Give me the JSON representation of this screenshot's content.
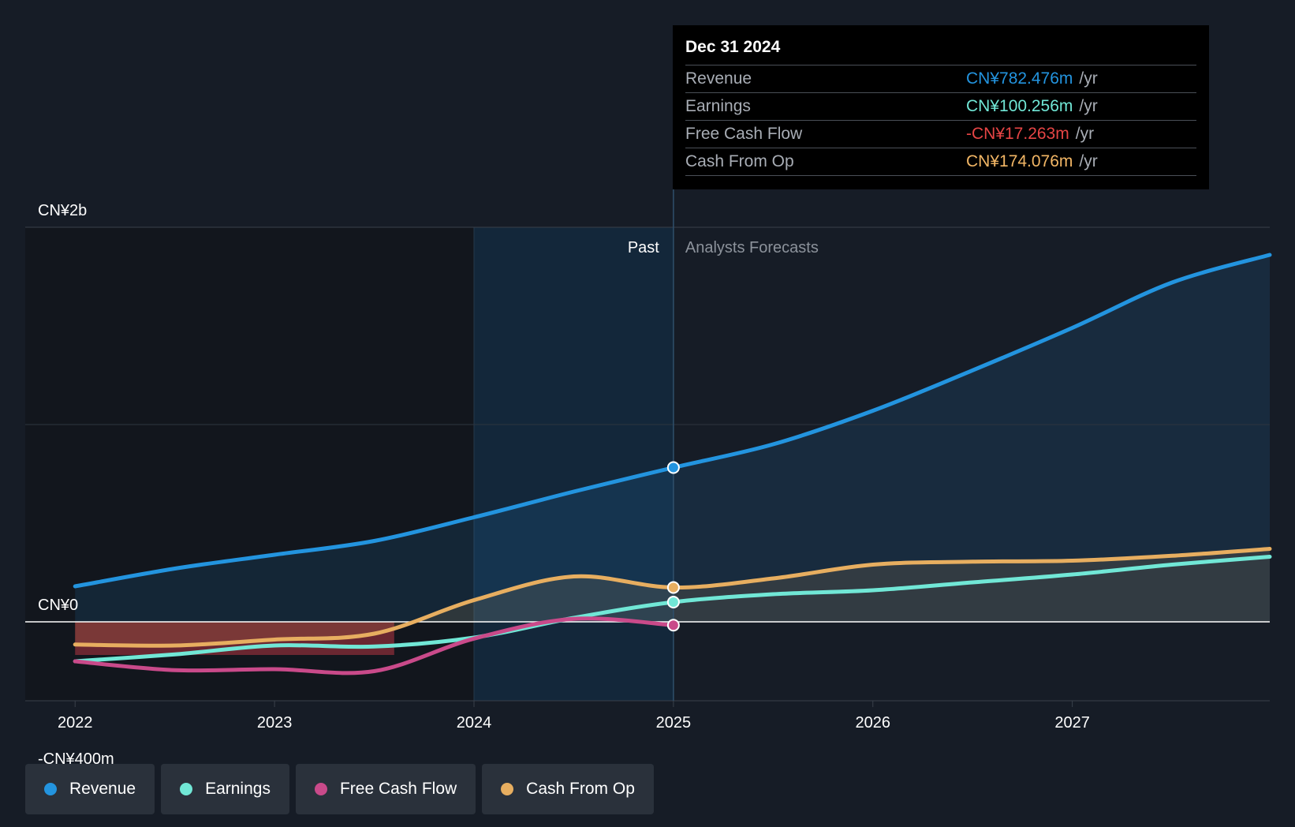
{
  "tooltip": {
    "date": "Dec 31 2024",
    "rows": [
      {
        "label": "Revenue",
        "value": "CN¥782.476m",
        "unit": "/yr",
        "color": "#2394df"
      },
      {
        "label": "Earnings",
        "value": "CN¥100.256m",
        "unit": "/yr",
        "color": "#71e7d6"
      },
      {
        "label": "Free Cash Flow",
        "value": "-CN¥17.263m",
        "unit": "/yr",
        "color": "#e64545"
      },
      {
        "label": "Cash From Op",
        "value": "CN¥174.076m",
        "unit": "/yr",
        "color": "#f2b665"
      }
    ]
  },
  "regions": {
    "past": "Past",
    "forecast": "Analysts Forecasts"
  },
  "legend": [
    {
      "label": "Revenue",
      "color": "#2394df"
    },
    {
      "label": "Earnings",
      "color": "#71e7d6"
    },
    {
      "label": "Free Cash Flow",
      "color": "#c94a8a"
    },
    {
      "label": "Cash From Op",
      "color": "#e7ae60"
    }
  ],
  "chart_data": {
    "type": "line",
    "title": "",
    "xlabel": "",
    "ylabel": "",
    "x_ticks": [
      "2022",
      "2023",
      "2024",
      "2025",
      "2026",
      "2027"
    ],
    "y_ticks": [
      {
        "value": 2000,
        "label": "CN¥2b"
      },
      {
        "value": 0,
        "label": "CN¥0"
      },
      {
        "value": -400,
        "label": "-CN¥400m"
      }
    ],
    "xlim": [
      2021.75,
      2027.99
    ],
    "ylim": [
      -400,
      2000
    ],
    "past_end": 2025.0,
    "highlight_start": 2024.0,
    "units": "CN¥ millions",
    "series": [
      {
        "name": "Revenue",
        "color": "#2394df",
        "points": [
          [
            2022.0,
            180
          ],
          [
            2022.5,
            270
          ],
          [
            2023.0,
            340
          ],
          [
            2023.5,
            410
          ],
          [
            2024.0,
            530
          ],
          [
            2024.5,
            660
          ],
          [
            2025.0,
            782
          ],
          [
            2025.5,
            900
          ],
          [
            2026.0,
            1070
          ],
          [
            2026.5,
            1275
          ],
          [
            2027.0,
            1490
          ],
          [
            2027.5,
            1720
          ],
          [
            2027.99,
            1860
          ]
        ]
      },
      {
        "name": "Earnings",
        "color": "#71e7d6",
        "points": [
          [
            2022.0,
            -200
          ],
          [
            2022.5,
            -165
          ],
          [
            2023.0,
            -120
          ],
          [
            2023.5,
            -125
          ],
          [
            2024.0,
            -80
          ],
          [
            2024.5,
            20
          ],
          [
            2025.0,
            100
          ],
          [
            2025.5,
            140
          ],
          [
            2026.0,
            160
          ],
          [
            2026.5,
            200
          ],
          [
            2027.0,
            240
          ],
          [
            2027.5,
            290
          ],
          [
            2027.99,
            330
          ]
        ]
      },
      {
        "name": "Free Cash Flow",
        "color": "#c94a8a",
        "points": [
          [
            2022.0,
            -200
          ],
          [
            2022.5,
            -245
          ],
          [
            2023.0,
            -240
          ],
          [
            2023.5,
            -250
          ],
          [
            2024.0,
            -85
          ],
          [
            2024.5,
            15
          ],
          [
            2025.0,
            -17
          ]
        ]
      },
      {
        "name": "Cash From Op",
        "color": "#e7ae60",
        "points": [
          [
            2022.0,
            -115
          ],
          [
            2022.5,
            -120
          ],
          [
            2023.0,
            -90
          ],
          [
            2023.5,
            -60
          ],
          [
            2024.0,
            110
          ],
          [
            2024.5,
            230
          ],
          [
            2025.0,
            174
          ],
          [
            2025.5,
            220
          ],
          [
            2026.0,
            290
          ],
          [
            2026.5,
            305
          ],
          [
            2027.0,
            310
          ],
          [
            2027.5,
            335
          ],
          [
            2027.99,
            370
          ]
        ]
      }
    ]
  }
}
